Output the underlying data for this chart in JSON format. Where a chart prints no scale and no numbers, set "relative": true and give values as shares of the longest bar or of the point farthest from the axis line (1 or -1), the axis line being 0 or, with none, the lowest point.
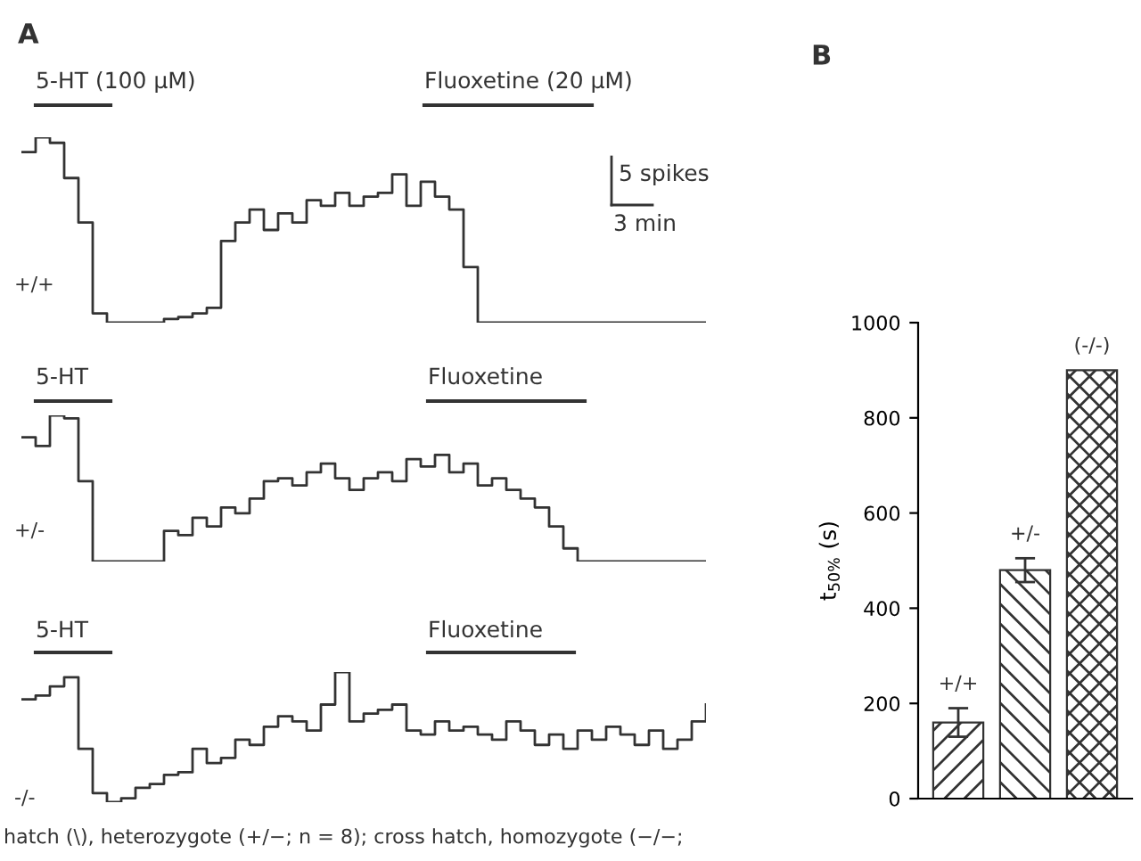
{
  "chart_data": [
    {
      "type": "step",
      "relative": true,
      "categories": [
        null,
        null,
        null,
        null,
        null,
        null,
        null,
        null,
        null,
        null,
        null,
        null,
        null,
        null,
        null,
        null,
        null,
        null,
        null,
        null,
        null,
        null,
        null,
        null,
        null,
        null,
        null,
        null,
        null,
        null,
        null,
        null,
        null,
        null,
        null,
        null,
        null,
        null,
        null,
        null,
        null,
        null,
        null,
        null,
        null,
        null,
        null,
        null,
        null
      ],
      "series": [
        {
          "color": "#333333",
          "values": [
            0.92,
            1.0,
            0.97,
            0.78,
            0.54,
            0.05,
            0,
            0,
            0,
            0,
            0.02,
            0.03,
            0.05,
            0.08,
            0.44,
            0.54,
            0.61,
            0.5,
            0.59,
            0.54,
            0.66,
            0.63,
            0.7,
            0.63,
            0.68,
            0.7,
            0.8,
            0.63,
            0.76,
            0.68,
            0.61,
            0.3,
            0,
            0,
            0,
            0,
            0,
            0,
            0,
            0,
            0,
            0,
            0,
            0,
            0,
            0,
            0,
            0,
            0
          ]
        }
      ],
      "annotations": [
        "A",
        "5-HT (100 µM)",
        "Fluoxetine (20 µM)",
        "+/+",
        "5 spikes",
        "3 min"
      ]
    },
    {
      "type": "step",
      "relative": true,
      "categories": [
        null,
        null,
        null,
        null,
        null,
        null,
        null,
        null,
        null,
        null,
        null,
        null,
        null,
        null,
        null,
        null,
        null,
        null,
        null,
        null,
        null,
        null,
        null,
        null,
        null,
        null,
        null,
        null,
        null,
        null,
        null,
        null,
        null,
        null,
        null,
        null,
        null,
        null,
        null,
        null,
        null,
        null,
        null,
        null,
        null,
        null,
        null,
        null,
        null
      ],
      "series": [
        {
          "color": "#333333",
          "values": [
            0.85,
            0.79,
            1.0,
            0.98,
            0.55,
            0,
            0,
            0,
            0,
            0,
            0.21,
            0.18,
            0.3,
            0.24,
            0.37,
            0.33,
            0.43,
            0.55,
            0.57,
            0.52,
            0.61,
            0.67,
            0.57,
            0.49,
            0.57,
            0.61,
            0.55,
            0.7,
            0.65,
            0.73,
            0.61,
            0.67,
            0.52,
            0.57,
            0.49,
            0.43,
            0.37,
            0.24,
            0.09,
            0,
            0,
            0,
            0,
            0,
            0,
            0,
            0,
            0,
            0
          ]
        }
      ],
      "annotations": [
        "5-HT",
        "Fluoxetine",
        "+/-"
      ]
    },
    {
      "type": "step",
      "relative": true,
      "categories": [
        null,
        null,
        null,
        null,
        null,
        null,
        null,
        null,
        null,
        null,
        null,
        null,
        null,
        null,
        null,
        null,
        null,
        null,
        null,
        null,
        null,
        null,
        null,
        null,
        null,
        null,
        null,
        null,
        null,
        null,
        null,
        null,
        null,
        null,
        null,
        null,
        null,
        null,
        null,
        null,
        null,
        null,
        null,
        null,
        null,
        null,
        null,
        null,
        null
      ],
      "series": [
        {
          "color": "#333333",
          "values": [
            0.79,
            0.82,
            0.89,
            0.96,
            0.41,
            0.07,
            0,
            0.03,
            0.11,
            0.14,
            0.21,
            0.23,
            0.41,
            0.3,
            0.34,
            0.48,
            0.44,
            0.58,
            0.66,
            0.62,
            0.55,
            0.75,
            1.0,
            0.62,
            0.68,
            0.71,
            0.75,
            0.55,
            0.52,
            0.62,
            0.55,
            0.58,
            0.52,
            0.48,
            0.62,
            0.55,
            0.44,
            0.52,
            0.41,
            0.55,
            0.48,
            0.58,
            0.52,
            0.44,
            0.55,
            0.41,
            0.48,
            0.62,
            0.75
          ]
        }
      ],
      "annotations": [
        "5-HT",
        "Fluoxetine",
        "-/-"
      ]
    },
    {
      "type": "bar",
      "categories": [
        "+/+",
        "+/-",
        "(-/-)"
      ],
      "values": [
        160,
        480,
        900
      ],
      "errors": [
        30,
        25,
        null
      ],
      "colors": [
        "#333333",
        "#333333",
        "#333333"
      ],
      "ylabel": "t$_{50%}$ (s)",
      "ylim": [
        0,
        1000
      ],
      "yticks": [
        0,
        200,
        400,
        600,
        800,
        1000
      ],
      "annotations": [
        "B",
        "hatch (\\), heterozygote (+/−; n = 8); cross hatch, homozygote (−/−;"
      ]
    }
  ]
}
